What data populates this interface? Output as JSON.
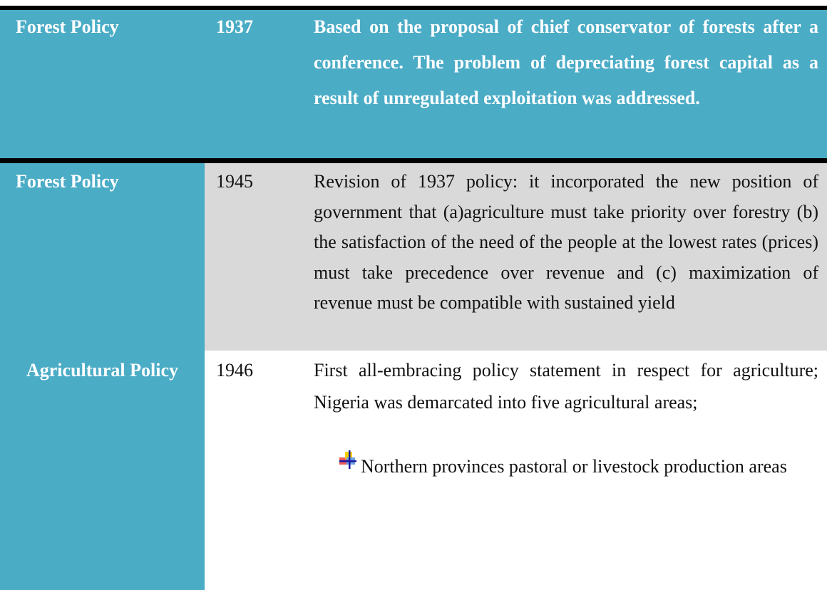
{
  "rows": [
    {
      "policy": "Forest Policy",
      "year": "1937",
      "description": "Based on the proposal of chief conservator of forests after a conference. The problem of depreciating forest capital as a result of unregulated exploitation was addressed."
    },
    {
      "policy": "Forest Policy",
      "year": "1945",
      "description": "Revision of 1937 policy: it incorporated the new position of government that (a)agriculture must take priority over forestry (b) the satisfaction of the need of the people at the lowest rates (prices) must take precedence over revenue and (c) maximization of revenue must be compatible with sustained yield"
    },
    {
      "policy": "Agricultural Policy",
      "year": "1946",
      "description": "First all-embracing policy statement in respect for agriculture; Nigeria was demarcated into five agricultural areas;",
      "bullets": [
        "Northern provinces pastoral or livestock production areas"
      ]
    }
  ]
}
